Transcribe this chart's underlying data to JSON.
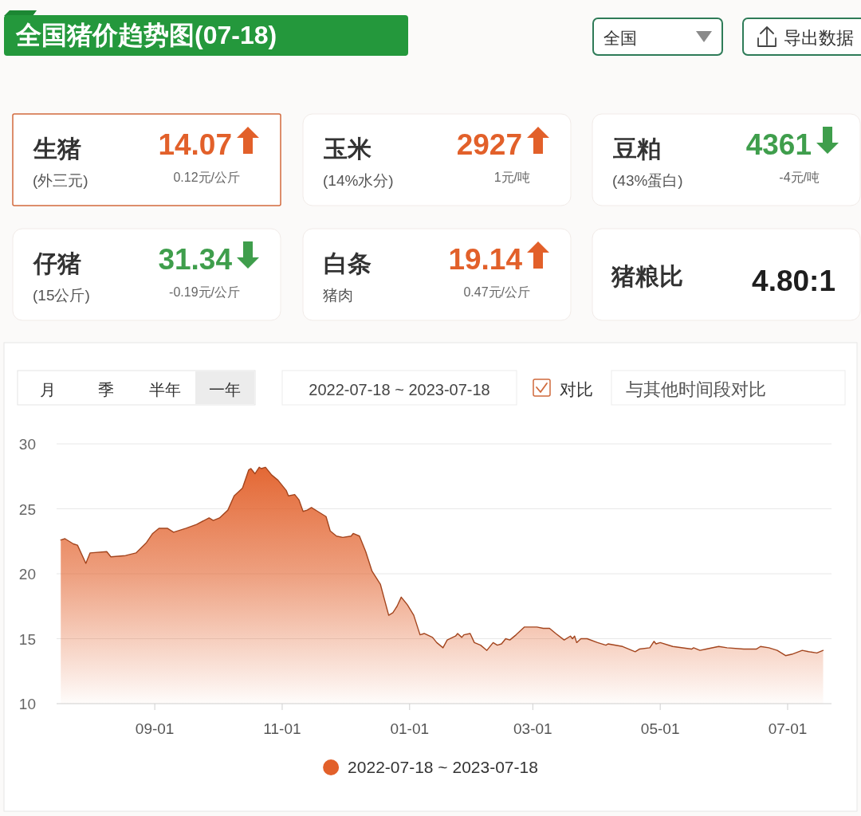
{
  "chart_data": [
    {
      "type": "other",
      "title": "全国猪价趋势图(07-18)",
      "annotations": [
        "全国",
        "导出数据",
        "生猪",
        "(外三元)",
        "14.07",
        "0.12元/公斤",
        "玉米",
        "(14%水分)",
        "2927",
        "1元/吨",
        "豆粕",
        "(43%蛋白)",
        "4361",
        "-4元/吨",
        "仔猪",
        "(15公斤)",
        "31.34",
        "-0.19元/公斤",
        "白条",
        "猪肉",
        "19.14",
        "0.47元/公斤",
        "猪粮比",
        "4.80:1"
      ]
    },
    {
      "type": "area",
      "annotations": [
        "月",
        "季",
        "半年",
        "一年",
        "2022-07-18 ~ 2023-07-18",
        "对比",
        "与其他时间段对比"
      ],
      "series": [
        {
          "name": "2022-07-18 ~ 2023-07-18",
          "color": "#e2602a",
          "x": [
            "2022-07-18",
            "2022-07-20",
            "2022-07-24",
            "2022-07-26",
            "2022-07-30",
            "2022-08-01",
            "2022-08-09",
            "2022-08-11",
            "2022-08-18",
            "2022-08-23",
            "2022-08-28",
            "2022-08-31",
            "2022-09-03",
            "2022-09-07",
            "2022-09-10",
            "2022-09-16",
            "2022-09-21",
            "2022-09-27",
            "2022-09-29",
            "2022-10-02",
            "2022-10-06",
            "2022-10-09",
            "2022-10-13",
            "2022-10-16",
            "2022-10-17",
            "2022-10-19",
            "2022-10-21",
            "2022-10-22",
            "2022-10-24",
            "2022-10-27",
            "2022-10-30",
            "2022-11-03",
            "2022-11-04",
            "2022-11-07",
            "2022-11-09",
            "2022-11-11",
            "2022-11-13",
            "2022-11-15",
            "2022-11-18",
            "2022-11-22",
            "2022-11-24",
            "2022-11-27",
            "2022-11-30",
            "2022-12-04",
            "2022-12-05",
            "2022-12-08",
            "2022-12-11",
            "2022-12-14",
            "2022-12-18",
            "2022-12-20",
            "2022-12-22",
            "2022-12-24",
            "2022-12-26",
            "2022-12-28",
            "2022-12-31",
            "2023-01-03",
            "2023-01-06",
            "2023-01-08",
            "2023-01-12",
            "2023-01-14",
            "2023-01-17",
            "2023-01-19",
            "2023-01-23",
            "2023-01-24",
            "2023-01-26",
            "2023-01-27",
            "2023-01-30",
            "2023-02-01",
            "2023-02-04",
            "2023-02-07",
            "2023-02-10",
            "2023-02-12",
            "2023-02-14",
            "2023-02-16",
            "2023-02-18",
            "2023-02-21",
            "2023-02-25",
            "2023-03-03",
            "2023-03-06",
            "2023-03-09",
            "2023-03-12",
            "2023-03-16",
            "2023-03-19",
            "2023-03-20",
            "2023-03-21",
            "2023-03-22",
            "2023-03-24",
            "2023-03-27",
            "2023-04-01",
            "2023-04-05",
            "2023-04-06",
            "2023-04-13",
            "2023-04-19",
            "2023-04-21",
            "2023-04-26",
            "2023-04-28",
            "2023-04-29",
            "2023-05-01",
            "2023-05-07",
            "2023-05-16",
            "2023-05-17",
            "2023-05-20",
            "2023-05-23",
            "2023-05-29",
            "2023-06-02",
            "2023-06-10",
            "2023-06-16",
            "2023-06-18",
            "2023-06-22",
            "2023-06-26",
            "2023-06-30",
            "2023-07-03",
            "2023-07-08",
            "2023-07-11",
            "2023-07-15",
            "2023-07-18"
          ],
          "values": [
            22.6,
            22.7,
            22.3,
            22.2,
            20.8,
            21.6,
            21.7,
            21.3,
            21.4,
            21.6,
            22.4,
            23.1,
            23.5,
            23.5,
            23.2,
            23.5,
            23.8,
            24.3,
            24.1,
            24.3,
            24.9,
            26.0,
            26.6,
            28.0,
            28.1,
            27.7,
            28.2,
            28.1,
            28.2,
            27.6,
            27.2,
            26.4,
            26.0,
            26.1,
            25.7,
            24.8,
            24.9,
            25.1,
            24.8,
            24.4,
            23.3,
            22.9,
            22.8,
            22.9,
            23.1,
            22.9,
            21.7,
            20.2,
            19.2,
            18.0,
            16.8,
            17.0,
            17.5,
            18.2,
            17.6,
            16.8,
            15.3,
            15.4,
            15.1,
            14.7,
            14.3,
            14.9,
            15.2,
            15.4,
            15.1,
            15.3,
            15.4,
            14.7,
            14.5,
            14.1,
            14.7,
            14.5,
            14.6,
            15.0,
            14.9,
            15.3,
            15.9,
            15.9,
            15.8,
            15.8,
            15.4,
            14.9,
            15.2,
            15.0,
            15.2,
            14.7,
            15.0,
            15.0,
            14.7,
            14.5,
            14.6,
            14.4,
            14.0,
            14.2,
            14.3,
            14.8,
            14.6,
            14.7,
            14.4,
            14.2,
            14.3,
            14.1,
            14.2,
            14.4,
            14.3,
            14.2,
            14.2,
            14.4,
            14.3,
            14.1,
            13.7,
            13.8,
            14.1,
            14.0,
            13.9,
            14.1
          ]
        }
      ],
      "xlim": [
        "2022-07-16",
        "2023-07-22"
      ],
      "xticks": [
        {
          "value": "2022-09-01",
          "label": "09-01"
        },
        {
          "value": "2022-11-01",
          "label": "11-01"
        },
        {
          "value": "2023-01-01",
          "label": "01-01"
        },
        {
          "value": "2023-03-01",
          "label": "03-01"
        },
        {
          "value": "2023-05-01",
          "label": "05-01"
        },
        {
          "value": "2023-07-01",
          "label": "07-01"
        }
      ],
      "ylim": [
        10,
        30
      ],
      "yticks": [
        10,
        15,
        20,
        25,
        30
      ],
      "grid": "y",
      "legend": "bottom"
    }
  ]
}
